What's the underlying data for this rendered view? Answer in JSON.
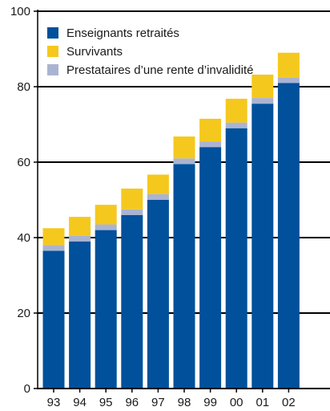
{
  "chart_data": {
    "type": "bar",
    "stacked": true,
    "categories": [
      "93",
      "94",
      "95",
      "96",
      "97",
      "98",
      "99",
      "00",
      "01",
      "02"
    ],
    "series": [
      {
        "name": "Enseignants retraités",
        "color": "#00509b",
        "values": [
          36.5,
          39,
          42,
          46,
          50,
          59.5,
          64,
          69,
          75.5,
          81
        ]
      },
      {
        "name": "Prestataires d’une rente d’invalidité",
        "color": "#aab4d2",
        "values": [
          1.5,
          1.5,
          1.5,
          1.5,
          1.5,
          1.5,
          1.5,
          1.5,
          1.5,
          1.5
        ]
      },
      {
        "name": "Survivants",
        "color": "#f5c81e",
        "values": [
          4.5,
          5,
          5.2,
          5.5,
          5.2,
          5.8,
          6,
          6.3,
          6.2,
          6.5
        ]
      }
    ],
    "legend_order": [
      0,
      2,
      1
    ],
    "yticks": [
      0,
      20,
      40,
      60,
      80,
      100
    ],
    "ylim": [
      0,
      100
    ],
    "grid": "horizontal",
    "legend_position": "top-left",
    "title": "",
    "xlabel": "",
    "ylabel": ""
  }
}
